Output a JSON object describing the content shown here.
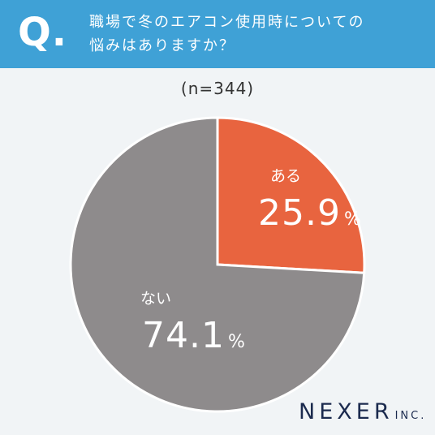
{
  "header": {
    "q_mark": "Q.",
    "question_line1": "職場で冬のエアコン使用時についての",
    "question_line2": "悩みはありますか？"
  },
  "sample_size": "(n=344)",
  "chart_data": {
    "type": "pie",
    "slices": [
      {
        "label": "ある",
        "value": 25.9,
        "display": "25.9",
        "unit": "%",
        "color": "#e8643f"
      },
      {
        "label": "ない",
        "value": 74.1,
        "display": "74.1",
        "unit": "%",
        "color": "#8e8b8c"
      }
    ],
    "start": "12 o'clock, clockwise"
  },
  "logo": {
    "brand": "NEXER",
    "suffix": "INC."
  },
  "colors": {
    "header": "#3fa1d6",
    "background": "#f1f4f6",
    "slice_yes": "#e8643f",
    "slice_no": "#8e8b8c",
    "logo": "#1b2a4e"
  }
}
